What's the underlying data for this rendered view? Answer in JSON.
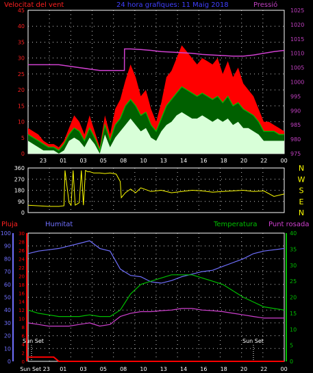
{
  "colors": {
    "wind_avg": "#00c000",
    "wind_gust": "#ff0000",
    "wind_base": "#d8ffd8",
    "pressure": "#d040d0",
    "direction": "#ffff00",
    "rain": "#ff0000",
    "humidity": "#7070ff",
    "temperature": "#00c000",
    "dewpoint": "#d040d0",
    "grid": "#ffffff",
    "axis_left": "#ff2020",
    "axis_right": "#c040c0",
    "title": "#4040ff"
  },
  "chart_data": [
    {
      "type": "line",
      "id": "wind",
      "title": "24 hora grafiques: 11 Maig 2018",
      "left_label": "Velocitat del vent",
      "right_label": "Pressió",
      "xlabels": [
        "23",
        "01",
        "03",
        "05",
        "08",
        "10",
        "13",
        "14",
        "16",
        "18",
        "20",
        "22",
        "00"
      ],
      "x_range": [
        0,
        25
      ],
      "ylim_left": [
        0,
        45
      ],
      "yticks_left": [
        "0",
        "5",
        "10",
        "15",
        "20",
        "25",
        "30",
        "35",
        "40",
        "45"
      ],
      "ylim_right": [
        975,
        1025
      ],
      "yticks_right": [
        "975",
        "980",
        "985",
        "990",
        "995",
        "1000",
        "1005",
        "1010",
        "1015",
        "1020",
        "1025"
      ],
      "series": [
        {
          "key": "gust",
          "axis": "left",
          "x": [
            0,
            0.5,
            1,
            1.5,
            2,
            2.5,
            3,
            3.5,
            4,
            4.5,
            5,
            5.5,
            6,
            6.5,
            7,
            7.5,
            8,
            8.5,
            9,
            9.5,
            10,
            10.5,
            11,
            11.5,
            12,
            12.5,
            13,
            13.5,
            14,
            14.5,
            15,
            15.5,
            16,
            16.5,
            17,
            17.5,
            18,
            18.5,
            19,
            19.5,
            20,
            20.5,
            21,
            21.5,
            22,
            22.5,
            23,
            23.5,
            24,
            24.5,
            25
          ],
          "values": [
            8,
            7,
            6,
            4,
            3,
            3,
            2,
            4,
            8,
            12,
            10,
            6,
            12,
            7,
            2,
            12,
            6,
            14,
            17,
            23,
            28,
            24,
            18,
            20,
            14,
            10,
            16,
            24,
            26,
            30,
            34,
            32,
            30,
            28,
            30,
            29,
            28,
            30,
            25,
            29,
            24,
            27,
            22,
            20,
            18,
            14,
            10,
            10,
            9,
            8,
            7
          ]
        },
        {
          "key": "avg",
          "axis": "left",
          "x": [
            0,
            0.5,
            1,
            1.5,
            2,
            2.5,
            3,
            3.5,
            4,
            4.5,
            5,
            5.5,
            6,
            6.5,
            7,
            7.5,
            8,
            8.5,
            9,
            9.5,
            10,
            10.5,
            11,
            11.5,
            12,
            12.5,
            13,
            13.5,
            14,
            14.5,
            15,
            15.5,
            16,
            16.5,
            17,
            17.5,
            18,
            18.5,
            19,
            19.5,
            20,
            20.5,
            21,
            21.5,
            22,
            22.5,
            23,
            23.5,
            24,
            24.5,
            25
          ],
          "values": [
            6,
            5,
            4,
            3,
            2,
            2,
            1,
            3,
            6,
            8,
            7,
            4,
            8,
            5,
            1,
            9,
            4,
            9,
            11,
            15,
            17,
            15,
            12,
            13,
            9,
            7,
            11,
            15,
            17,
            19,
            21,
            20,
            19,
            18,
            19,
            18,
            17,
            18,
            16,
            18,
            15,
            16,
            14,
            13,
            12,
            10,
            7,
            7,
            7,
            6,
            6
          ]
        },
        {
          "key": "base",
          "axis": "left",
          "x": [
            0,
            0.5,
            1,
            1.5,
            2,
            2.5,
            3,
            3.5,
            4,
            4.5,
            5,
            5.5,
            6,
            6.5,
            7,
            7.5,
            8,
            8.5,
            9,
            9.5,
            10,
            10.5,
            11,
            11.5,
            12,
            12.5,
            13,
            13.5,
            14,
            14.5,
            15,
            15.5,
            16,
            16.5,
            17,
            17.5,
            18,
            18.5,
            19,
            19.5,
            20,
            20.5,
            21,
            21.5,
            22,
            22.5,
            23,
            23.5,
            24,
            24.5,
            25
          ],
          "values": [
            4,
            3,
            2,
            1,
            1,
            1,
            0,
            1,
            4,
            5,
            4,
            2,
            5,
            3,
            0,
            6,
            2,
            5,
            7,
            9,
            11,
            9,
            7,
            8,
            5,
            4,
            7,
            9,
            10,
            12,
            13,
            12,
            11,
            11,
            12,
            11,
            10,
            11,
            10,
            11,
            9,
            10,
            8,
            8,
            7,
            6,
            4,
            4,
            4,
            4,
            4
          ]
        },
        {
          "key": "pressure",
          "axis": "right",
          "x": [
            0,
            1,
            2,
            3,
            4,
            5,
            6,
            7,
            8,
            8.6,
            9,
            9.4,
            9.41,
            10,
            11,
            12,
            13,
            14,
            15,
            16,
            17,
            18,
            19,
            20,
            21,
            22,
            23,
            24,
            25
          ],
          "values": [
            1006,
            1006,
            1006,
            1006,
            1005.5,
            1005,
            1004.5,
            1004,
            1004,
            1004,
            1004,
            1004,
            1011.5,
            1011.5,
            1011.3,
            1011,
            1010.6,
            1010.4,
            1010.2,
            1010,
            1009.6,
            1009.4,
            1009.2,
            1009,
            1009,
            1009.4,
            1010,
            1010.6,
            1011
          ]
        }
      ]
    },
    {
      "type": "line",
      "id": "direction",
      "right_labels": [
        "N",
        "W",
        "S",
        "E",
        "N"
      ],
      "ylim": [
        0,
        360
      ],
      "yticks": [
        "0",
        "90",
        "180",
        "270",
        "360"
      ],
      "series": [
        {
          "key": "dir",
          "x": [
            0,
            1,
            2,
            3,
            3.5,
            3.6,
            4,
            4.2,
            4.4,
            4.6,
            4.8,
            5,
            5.2,
            5.4,
            5.6,
            5.8,
            6,
            6.2,
            6.4,
            7,
            7.5,
            8,
            8.6,
            9,
            9.1,
            9.5,
            10,
            10.5,
            11,
            12,
            13,
            14,
            15,
            16,
            17,
            18,
            19,
            20,
            21,
            22,
            23,
            24,
            25
          ],
          "values": [
            60,
            55,
            50,
            50,
            55,
            340,
            80,
            60,
            340,
            60,
            70,
            80,
            340,
            60,
            340,
            330,
            330,
            325,
            320,
            320,
            315,
            320,
            310,
            250,
            120,
            160,
            190,
            160,
            200,
            170,
            180,
            160,
            170,
            180,
            175,
            165,
            170,
            175,
            180,
            170,
            175,
            130,
            150
          ]
        }
      ]
    },
    {
      "type": "line",
      "id": "climate",
      "labels": {
        "rain": "Pluja",
        "humidity": "Humitat",
        "temperature": "Temperatura",
        "dewpoint": "Punt rosada"
      },
      "xlabels": [
        "Sun Set 23",
        "01",
        "03",
        "05",
        "08",
        "10",
        "13",
        "14",
        "16",
        "18",
        "20",
        "22",
        "00"
      ],
      "sunset_label": "Sun Set",
      "ylim_humidity": [
        0,
        100
      ],
      "yticks_humidity": [
        "0",
        "10",
        "20",
        "30",
        "40",
        "50",
        "60",
        "70",
        "80",
        "90",
        "100"
      ],
      "ylim_rain": [
        0,
        30
      ],
      "yticks_rain": [
        "0",
        "2",
        "4",
        "6",
        "8",
        "10",
        "12",
        "14",
        "16",
        "18",
        "20",
        "22",
        "24",
        "26",
        "28",
        "30"
      ],
      "ylim_temp": [
        0,
        40
      ],
      "yticks_temp": [
        "0",
        "5",
        "10",
        "15",
        "20",
        "25",
        "30",
        "35",
        "40"
      ],
      "series": [
        {
          "key": "humidity",
          "axis": "humidity",
          "x": [
            0,
            1,
            2,
            3,
            4,
            5,
            6,
            7,
            8,
            9,
            10,
            11,
            12,
            13,
            14,
            15,
            16,
            17,
            18,
            19,
            20,
            21,
            22,
            23,
            24,
            25
          ],
          "values": [
            84,
            86,
            87,
            88,
            90,
            92,
            94,
            88,
            86,
            72,
            67,
            66,
            62,
            61,
            63,
            66,
            68,
            70,
            71,
            74,
            77,
            80,
            84,
            86,
            87,
            88
          ]
        },
        {
          "key": "rain",
          "axis": "rain",
          "x": [
            0,
            0.5,
            1,
            1.5,
            2,
            2.5,
            3,
            4,
            6,
            8,
            10,
            12,
            14,
            16,
            18,
            20,
            22,
            24,
            25
          ],
          "values": [
            1,
            1,
            1,
            1,
            1,
            1,
            0,
            0,
            0,
            0,
            0,
            0,
            0,
            0,
            0,
            0,
            0,
            0,
            0
          ]
        },
        {
          "key": "temperature",
          "axis": "temp",
          "x": [
            0,
            1,
            2,
            3,
            4,
            5,
            6,
            7,
            8,
            9,
            10,
            11,
            12,
            13,
            14,
            15,
            16,
            17,
            18,
            19,
            20,
            21,
            22,
            23,
            24,
            25
          ],
          "values": [
            16,
            15,
            14.5,
            14,
            14,
            14,
            14.5,
            14,
            14,
            16,
            21,
            24,
            25,
            26,
            27,
            27,
            27,
            26,
            25,
            24,
            22,
            20,
            18.5,
            17,
            16.5,
            16
          ]
        },
        {
          "key": "dewpoint",
          "axis": "temp",
          "x": [
            0,
            1,
            2,
            3,
            4,
            5,
            6,
            7,
            8,
            9,
            10,
            11,
            12,
            13,
            14,
            15,
            16,
            17,
            18,
            19,
            20,
            21,
            22,
            23,
            24,
            25
          ],
          "values": [
            12,
            11.5,
            11,
            11,
            11,
            11.5,
            12,
            11,
            11.5,
            14,
            15,
            15.5,
            15.5,
            15.8,
            16,
            16.5,
            16.5,
            16,
            15.8,
            15.5,
            15,
            14.5,
            14,
            13.5,
            13.5,
            13.5
          ]
        }
      ]
    }
  ]
}
